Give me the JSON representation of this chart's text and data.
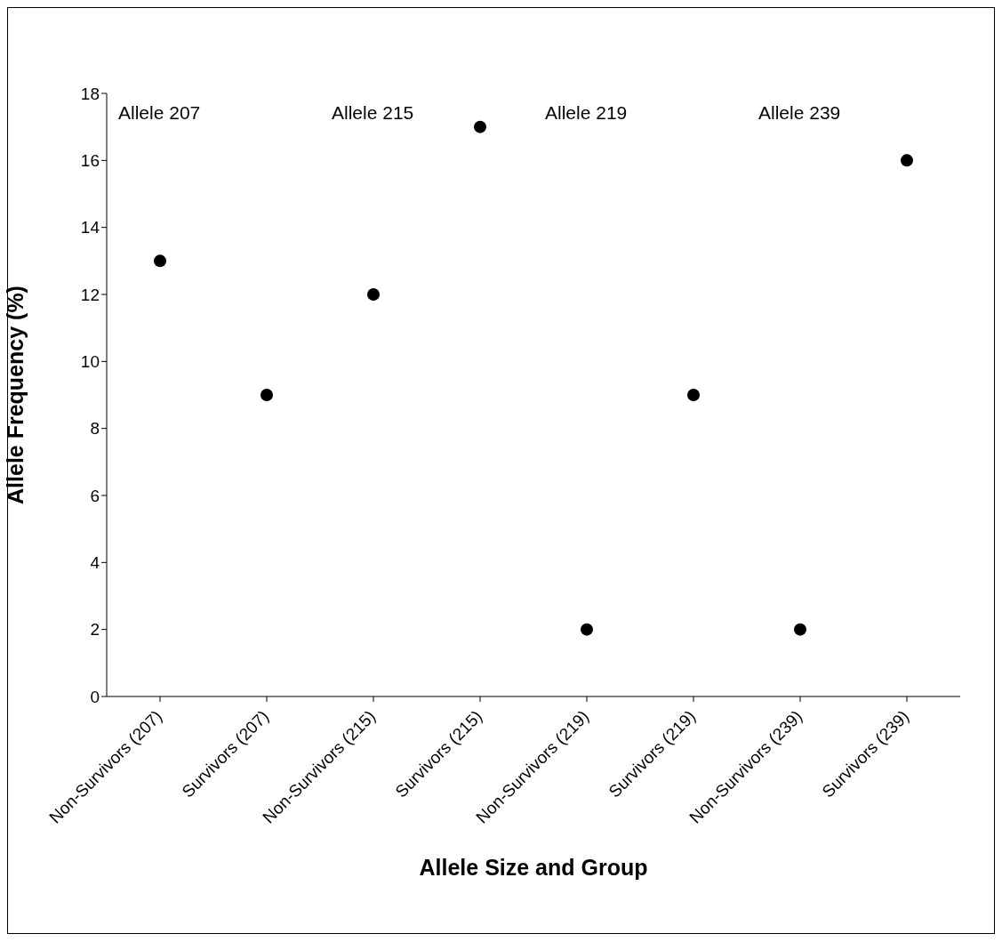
{
  "chart_data": [
    {
      "type": "scatter",
      "title": "Allele 207",
      "ylabel": "Allele Frequency (%)",
      "xlabel": "Allele Size and Group",
      "categories": [
        "Non-Survivors (207)",
        "Survivors (207)"
      ],
      "values": [
        13,
        9
      ],
      "color": "#000000",
      "marker": "circle",
      "ylim": [
        0,
        18
      ],
      "yticks": [
        0,
        2,
        4,
        6,
        8,
        10,
        12,
        14,
        16,
        18
      ]
    },
    {
      "type": "scatter",
      "title": "Allele 215",
      "categories": [
        "Non-Survivors (215)",
        "Survivors (215)"
      ],
      "values": [
        12,
        17
      ],
      "color": "#000000",
      "marker": "circle",
      "ylim": [
        0,
        18
      ],
      "yticks": [
        0,
        2,
        4,
        6,
        8,
        10,
        12,
        14,
        16,
        18
      ],
      "tick_labels": "x"
    },
    {
      "type": "scatter",
      "title": "Allele 219",
      "categories": [
        "Non-Survivors (219)",
        "Survivors (219)"
      ],
      "values": [
        2,
        9
      ],
      "color": "#000000",
      "marker": "circle",
      "ylim": [
        0,
        18
      ],
      "yticks": [
        0,
        2,
        4,
        6,
        8,
        10,
        12,
        14,
        16,
        18
      ],
      "tick_labels": "x"
    },
    {
      "type": "scatter",
      "title": "Allele 239",
      "categories": [
        "Non-Survivors (239)",
        "Survivors (239)"
      ],
      "values": [
        2,
        16
      ],
      "color": "#000000",
      "marker": "circle",
      "ylim": [
        0,
        18
      ],
      "yticks": [
        0,
        2,
        4,
        6,
        8,
        10,
        12,
        14,
        16,
        18
      ],
      "tick_labels": "x"
    }
  ]
}
